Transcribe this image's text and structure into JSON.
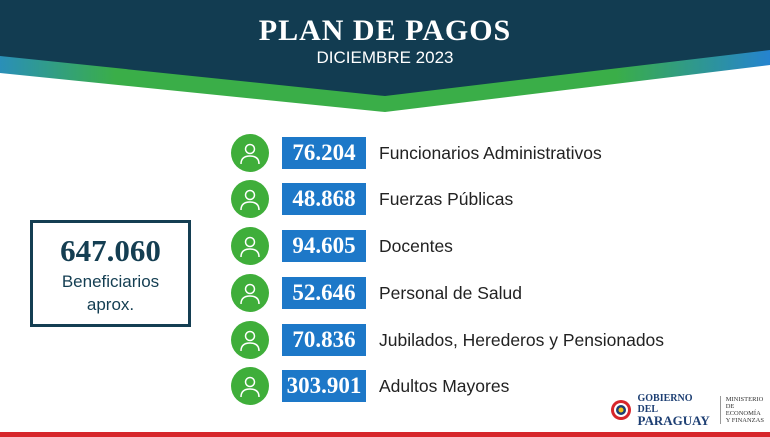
{
  "header": {
    "title": "PLAN DE PAGOS",
    "subtitle": "DICIEMBRE 2023"
  },
  "total": {
    "value": "647.060",
    "label_line1": "Beneficiarios",
    "label_line2": "aprox."
  },
  "rows": [
    {
      "value": "76.204",
      "label": "Funcionarios Administrativos",
      "icon": "officials-icon"
    },
    {
      "value": "48.868",
      "label": "Fuerzas Públicas",
      "icon": "police-icon"
    },
    {
      "value": "94.605",
      "label": "Docentes",
      "icon": "teacher-icon"
    },
    {
      "value": "52.646",
      "label": "Personal de Salud",
      "icon": "doctor-icon"
    },
    {
      "value": "70.836",
      "label": "Jubilados, Herederos y Pensionados",
      "icon": "retirees-icon"
    },
    {
      "value": "303.901",
      "label": "Adultos Mayores",
      "icon": "elderly-icon"
    }
  ],
  "footer": {
    "gov_line1": "GOBIERNO DEL",
    "gov_line2": "PARAGUAY",
    "ministry_line1": "MINISTERIO",
    "ministry_line2": "DE ECONOMÍA",
    "ministry_line3": "Y FINANZAS"
  },
  "colors": {
    "navy": "#143e52",
    "green": "#3fae3a",
    "blue": "#1d78c8",
    "red": "#d7262b"
  }
}
